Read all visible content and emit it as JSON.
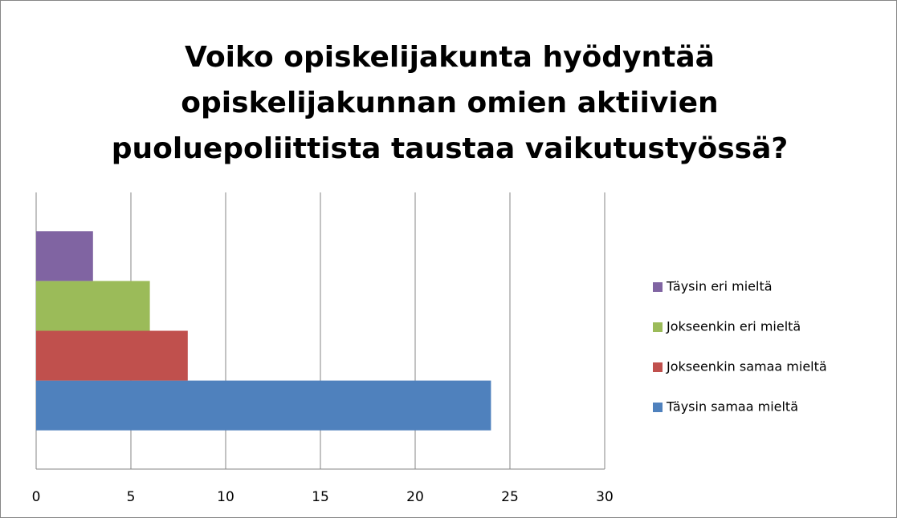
{
  "chart_data": {
    "type": "bar",
    "orientation": "horizontal",
    "title": [
      "Voiko opiskelijakunta hyödyntää",
      "opiskelijakunnan omien aktiivien",
      "puoluepoliittista taustaa vaikutustyössä?"
    ],
    "categories": [
      null
    ],
    "series": [
      {
        "name": "Täysin samaa mieltä",
        "color": "#4f81bd",
        "values": [
          24
        ]
      },
      {
        "name": "Jokseenkin samaa mieltä",
        "color": "#c0504d",
        "values": [
          8
        ]
      },
      {
        "name": "Jokseenkin eri mieltä",
        "color": "#9bbb59",
        "values": [
          6
        ]
      },
      {
        "name": "Täysin eri mieltä",
        "color": "#8064a2",
        "values": [
          3
        ]
      }
    ],
    "xlim": [
      0,
      30
    ],
    "xticks": [
      0,
      5,
      10,
      15,
      20,
      25,
      30
    ],
    "grid": true,
    "legend": "right"
  }
}
